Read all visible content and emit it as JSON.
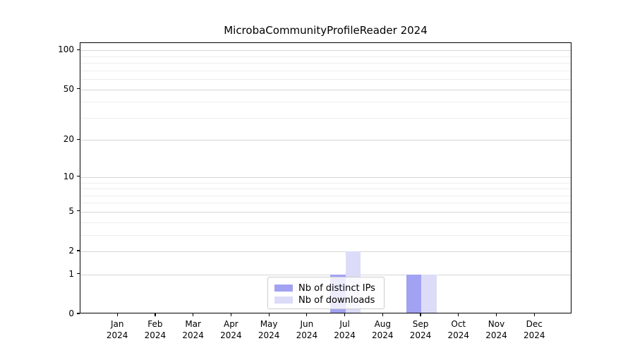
{
  "chart_data": {
    "type": "bar",
    "title": "MicrobaCommunityProfileReader 2024",
    "categories": [
      "Jan 2024",
      "Feb 2024",
      "Mar 2024",
      "Apr 2024",
      "May 2024",
      "Jun 2024",
      "Jul 2024",
      "Aug 2024",
      "Sep 2024",
      "Oct 2024",
      "Nov 2024",
      "Dec 2024"
    ],
    "series": [
      {
        "name": "Nb of distinct IPs",
        "color": "#a2a2f2",
        "values": [
          0,
          0,
          0,
          0,
          0,
          0,
          1,
          0,
          1,
          0,
          0,
          0
        ]
      },
      {
        "name": "Nb of downloads",
        "color": "#dcdcf8",
        "values": [
          0,
          0,
          0,
          0,
          0,
          0,
          2,
          0,
          1,
          0,
          0,
          0
        ]
      }
    ],
    "xlabel": "",
    "ylabel": "",
    "y_axis": {
      "scale": "log1p",
      "ticks": [
        0,
        1,
        2,
        5,
        10,
        20,
        50,
        100
      ],
      "minor_ticks": [
        3,
        4,
        6,
        7,
        8,
        9,
        30,
        40,
        60,
        70,
        80,
        90
      ],
      "ylim": [
        0,
        118
      ]
    },
    "grid": "horizontal",
    "legend_position": "lower center"
  },
  "colors": {
    "grid_major": "#d6d6d6",
    "grid_minor": "#ededed",
    "axis": "#000000",
    "background": "#ffffff"
  }
}
